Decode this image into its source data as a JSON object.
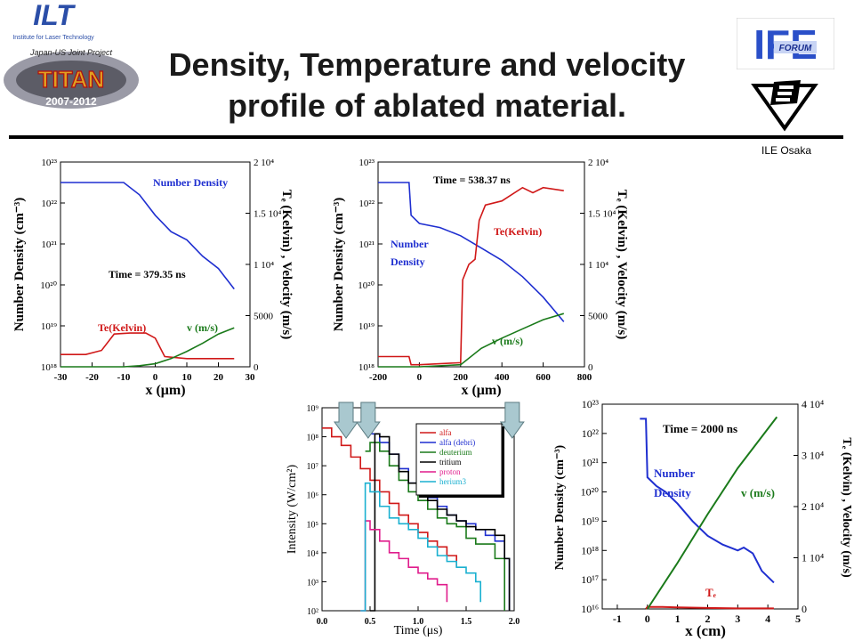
{
  "slide": {
    "title_line1": "Density, Temperature and velocity",
    "title_line2": "profile of ablated material.",
    "affiliation": "ILE Osaka"
  },
  "logos": {
    "ilt_text": "ILT",
    "ilt_sub": "Institute for Laser Technology",
    "titan_top": "Japan-US Joint Project",
    "titan_text": "TITAN",
    "titan_years": "2007-2012",
    "ife_text": "IFE",
    "ife_sub": "FORUM"
  },
  "colors": {
    "density": "#1f2fd0",
    "temperature": "#d01818",
    "velocity": "#1a7a1a",
    "arrow_fill": "#a9c8cf",
    "title": "#1a1a1a"
  },
  "chart_data": [
    {
      "type": "line",
      "ylabel": "Number Density (cm⁻³)",
      "y2label": "Tₑ (Kelvin) , Velocity (m/s)",
      "xlabel": "x (μm)",
      "xlim": [
        -30,
        30
      ],
      "xticks": [
        "-30",
        "-20",
        "-10",
        "0",
        "10",
        "20",
        "30"
      ],
      "ylim_log10": [
        18,
        23
      ],
      "yticks": [
        "10¹⁸",
        "10¹⁹",
        "10²⁰",
        "10²¹",
        "10²²",
        "10²³"
      ],
      "y2lim": [
        0,
        20000
      ],
      "y2ticks": [
        "0",
        "5000",
        "1 10⁴",
        "1.5 10⁴",
        "2 10⁴"
      ],
      "annotations": [
        "Number Density",
        "Time = 379.35 ns",
        "Te(Kelvin)",
        "v (m/s)"
      ],
      "series": [
        {
          "name": "Number Density",
          "axis": "left_log10",
          "x": [
            -30,
            -15,
            -10,
            -5,
            0,
            5,
            10,
            15,
            20,
            25
          ],
          "y": [
            22.5,
            22.5,
            22.5,
            22.2,
            21.7,
            21.3,
            21.1,
            20.7,
            20.4,
            19.9
          ]
        },
        {
          "name": "Te(Kelvin)",
          "axis": "right",
          "x": [
            -30,
            -22,
            -17,
            -13,
            -8,
            -3,
            0,
            3,
            10,
            25
          ],
          "y": [
            1200,
            1200,
            1600,
            3200,
            3300,
            3300,
            2800,
            1000,
            800,
            800
          ]
        },
        {
          "name": "v (m/s)",
          "axis": "right",
          "x": [
            -30,
            -20,
            -10,
            -5,
            0,
            5,
            10,
            15,
            20,
            25
          ],
          "y": [
            0,
            0,
            0,
            100,
            300,
            800,
            1500,
            2300,
            3200,
            3800
          ]
        }
      ]
    },
    {
      "type": "line",
      "ylabel": "Number Density (cm⁻³)",
      "y2label": "Tₑ (Kelvin) , Velocity (m/s)",
      "xlabel": "x (μm)",
      "xlim": [
        -200,
        800
      ],
      "xticks": [
        "-200",
        "0",
        "200",
        "400",
        "600",
        "800"
      ],
      "ylim_log10": [
        18,
        23
      ],
      "yticks": [
        "10¹⁸",
        "10¹⁹",
        "10²⁰",
        "10²¹",
        "10²²",
        "10²³"
      ],
      "y2lim": [
        0,
        20000
      ],
      "y2ticks": [
        "0",
        "5000",
        "1 10⁴",
        "1.5 10⁴",
        "2 10⁴"
      ],
      "annotations": [
        "Time = 538.37 ns",
        "Te(Kelvin)",
        "Number",
        "Density",
        "v (m/s)"
      ],
      "series": [
        {
          "name": "Number Density",
          "axis": "left_log10",
          "x": [
            -200,
            -50,
            -40,
            0,
            100,
            200,
            300,
            400,
            500,
            600,
            700
          ],
          "y": [
            22.5,
            22.5,
            21.7,
            21.5,
            21.4,
            21.2,
            20.9,
            20.6,
            20.2,
            19.7,
            19.1
          ]
        },
        {
          "name": "Te(Kelvin)",
          "axis": "right",
          "x": [
            -200,
            -50,
            -40,
            0,
            200,
            210,
            240,
            270,
            290,
            320,
            400,
            500,
            550,
            600,
            700
          ],
          "y": [
            1000,
            1000,
            200,
            200,
            400,
            8500,
            10000,
            10500,
            14300,
            15800,
            16200,
            17500,
            17000,
            17500,
            17200
          ]
        },
        {
          "name": "v (m/s)",
          "axis": "right",
          "x": [
            -200,
            -40,
            0,
            200,
            300,
            400,
            500,
            600,
            700
          ],
          "y": [
            0,
            0,
            0,
            200,
            1800,
            2800,
            3700,
            4600,
            5200
          ]
        }
      ]
    },
    {
      "type": "line",
      "ylabel": "Intensity (W/cm²)",
      "xlabel": "Time (μs)",
      "xlim": [
        0.0,
        2.0
      ],
      "xticks": [
        "0.0",
        "0.5",
        "1.0",
        "1.5",
        "2.0"
      ],
      "ylim_log10": [
        2,
        9
      ],
      "yticks": [
        "10²",
        "10³",
        "10⁴",
        "10⁵",
        "10⁶",
        "10⁷",
        "10⁸",
        "10⁹"
      ],
      "legend": "top-right",
      "series": [
        {
          "name": "alfa",
          "x": [
            0.0,
            0.1,
            0.2,
            0.3,
            0.4,
            0.5,
            0.6,
            0.7,
            0.8,
            0.9,
            1.0,
            1.1,
            1.2,
            1.3,
            1.4
          ],
          "y": [
            8.3,
            8.0,
            7.7,
            7.3,
            6.9,
            6.5,
            6.1,
            5.7,
            5.3,
            5.0,
            4.7,
            4.4,
            4.2,
            3.9,
            3.5
          ]
        },
        {
          "name": "alfa (debri)",
          "x": [
            0.5,
            0.6,
            0.7,
            0.8,
            0.9,
            1.0,
            1.1,
            1.2,
            1.3,
            1.4,
            1.5,
            1.6,
            1.7,
            1.8,
            1.9,
            1.95
          ],
          "y": [
            8.1,
            7.8,
            7.4,
            6.9,
            6.4,
            6.1,
            5.9,
            5.6,
            5.3,
            5.1,
            5.0,
            4.8,
            4.6,
            4.4,
            3.8,
            2.0
          ]
        },
        {
          "name": "deuterium",
          "x": [
            0.45,
            0.5,
            0.6,
            0.7,
            0.8,
            0.9,
            1.0,
            1.1,
            1.2,
            1.3,
            1.4,
            1.5,
            1.6,
            1.7,
            1.8,
            1.9
          ],
          "y": [
            7.5,
            7.8,
            7.5,
            7.0,
            6.5,
            6.1,
            5.8,
            5.5,
            5.2,
            5.0,
            4.9,
            4.5,
            4.3,
            4.3,
            3.8,
            2.0
          ]
        },
        {
          "name": "tritium",
          "x": [
            0.5,
            0.55,
            0.6,
            0.7,
            0.8,
            0.9,
            1.0,
            1.1,
            1.2,
            1.3,
            1.4,
            1.5,
            1.6,
            1.7,
            1.8,
            1.9,
            1.95
          ],
          "y": [
            2.0,
            8.1,
            8.0,
            7.4,
            6.8,
            6.4,
            6.1,
            5.8,
            5.5,
            5.3,
            5.1,
            4.9,
            4.8,
            4.8,
            4.6,
            3.8,
            2.0
          ]
        },
        {
          "name": "proton",
          "x": [
            0.4,
            0.45,
            0.5,
            0.6,
            0.7,
            0.8,
            0.9,
            1.0,
            1.1,
            1.2,
            1.3
          ],
          "y": [
            2.0,
            5.1,
            4.8,
            4.4,
            4.0,
            3.8,
            3.5,
            3.3,
            3.1,
            2.9,
            2.3
          ]
        },
        {
          "name": "herium3",
          "x": [
            0.4,
            0.45,
            0.5,
            0.6,
            0.7,
            0.8,
            0.9,
            1.0,
            1.1,
            1.2,
            1.3,
            1.4,
            1.5,
            1.6,
            1.65
          ],
          "y": [
            2.0,
            6.4,
            6.1,
            5.6,
            5.2,
            5.0,
            4.8,
            4.5,
            4.2,
            3.9,
            3.7,
            3.5,
            3.3,
            3.0,
            2.3
          ]
        }
      ],
      "arrows_at_time": [
        0.25,
        0.48,
        1.98
      ]
    },
    {
      "type": "line",
      "ylabel": "Number Density (cm⁻³)",
      "y2label": "Tₑ (Kelvin) , Velocity (m/s)",
      "xlabel": "x (cm)",
      "xlim": [
        -1.5,
        5
      ],
      "xticks": [
        "-1",
        "0",
        "1",
        "2",
        "3",
        "4",
        "5"
      ],
      "ylim_log10": [
        16,
        23
      ],
      "yticks": [
        "10¹⁶",
        "10¹⁷",
        "10¹⁸",
        "10¹⁹",
        "10²⁰",
        "10²¹",
        "10²²",
        "10²³"
      ],
      "y2lim": [
        0,
        40000
      ],
      "y2ticks": [
        "0",
        "1 10⁴",
        "2 10⁴",
        "3 10⁴",
        "4 10⁴"
      ],
      "annotations": [
        "Time = 2000 ns",
        "Number",
        "Density",
        "v (m/s)",
        "Tₑ"
      ],
      "series": [
        {
          "name": "Number Density",
          "axis": "left_log10",
          "x": [
            -0.25,
            -0.05,
            0.0,
            0.3,
            0.6,
            1.0,
            1.5,
            2.0,
            2.5,
            3.0,
            3.2,
            3.5,
            3.8,
            4.2
          ],
          "y": [
            22.5,
            22.5,
            20.5,
            20.2,
            20.0,
            19.6,
            19.0,
            18.5,
            18.2,
            18.0,
            18.1,
            17.9,
            17.3,
            16.9
          ]
        },
        {
          "name": "Tₑ",
          "axis": "right",
          "x": [
            -0.05,
            0.0,
            0.5,
            1.0,
            2.0,
            3.0,
            4.2
          ],
          "y": [
            0,
            400,
            400,
            300,
            200,
            100,
            100
          ]
        },
        {
          "name": "v (m/s)",
          "axis": "right",
          "x": [
            0.0,
            1.0,
            2.0,
            3.0,
            4.3
          ],
          "y": [
            0,
            9000,
            18500,
            27500,
            37500
          ]
        }
      ]
    }
  ]
}
